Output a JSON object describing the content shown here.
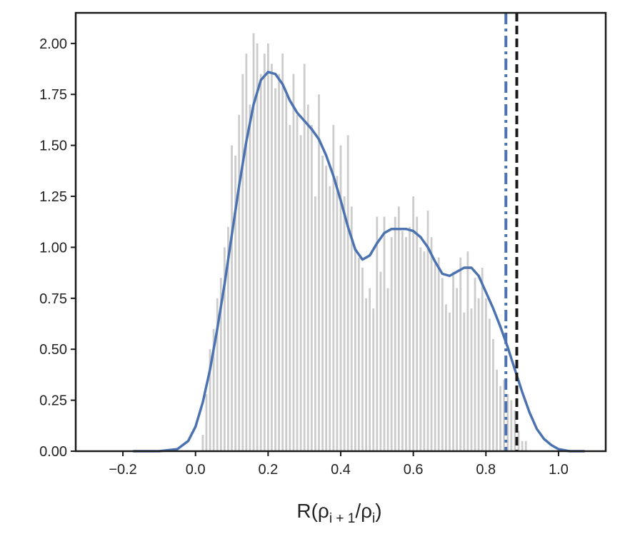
{
  "chart_data": {
    "type": "bar",
    "title": "",
    "xlabel": "R(ρ",
    "xlabel_sub1": "i + 1",
    "xlabel_mid": "/ρ",
    "xlabel_sub2": "i",
    "xlabel_end": ")",
    "ylabel": "",
    "xlim": [
      -0.33,
      1.13
    ],
    "ylim": [
      0.0,
      2.15
    ],
    "grid": false,
    "xticks": [
      -0.2,
      0.0,
      0.2,
      0.4,
      0.6,
      0.8,
      1.0
    ],
    "xtick_labels": [
      "−0.2",
      "0.0",
      "0.2",
      "0.4",
      "0.6",
      "0.8",
      "1.0"
    ],
    "yticks": [
      0.0,
      0.25,
      0.5,
      0.75,
      1.0,
      1.25,
      1.5,
      1.75,
      2.0
    ],
    "ytick_labels": [
      "0.00",
      "0.25",
      "0.50",
      "0.75",
      "1.00",
      "1.25",
      "1.50",
      "1.75",
      "2.00"
    ],
    "histogram": {
      "color": "#cccccc",
      "bin_width": 0.01,
      "bin_centers": [
        0.02,
        0.03,
        0.04,
        0.05,
        0.06,
        0.07,
        0.08,
        0.09,
        0.1,
        0.11,
        0.12,
        0.13,
        0.14,
        0.15,
        0.16,
        0.17,
        0.18,
        0.19,
        0.2,
        0.21,
        0.22,
        0.23,
        0.24,
        0.25,
        0.26,
        0.27,
        0.28,
        0.29,
        0.3,
        0.31,
        0.32,
        0.33,
        0.34,
        0.35,
        0.36,
        0.37,
        0.38,
        0.39,
        0.4,
        0.41,
        0.42,
        0.43,
        0.44,
        0.45,
        0.46,
        0.47,
        0.48,
        0.49,
        0.5,
        0.51,
        0.52,
        0.53,
        0.54,
        0.55,
        0.56,
        0.57,
        0.58,
        0.59,
        0.6,
        0.61,
        0.62,
        0.63,
        0.64,
        0.65,
        0.66,
        0.67,
        0.68,
        0.69,
        0.7,
        0.71,
        0.72,
        0.73,
        0.74,
        0.75,
        0.76,
        0.77,
        0.78,
        0.79,
        0.8,
        0.81,
        0.82,
        0.83,
        0.84,
        0.85,
        0.86,
        0.87,
        0.88,
        0.89,
        0.9,
        0.91
      ],
      "values": [
        0.08,
        0.28,
        0.5,
        0.6,
        0.75,
        0.85,
        1.0,
        1.1,
        1.5,
        1.45,
        1.65,
        1.85,
        1.95,
        1.7,
        2.05,
        2.0,
        1.85,
        1.95,
        2.0,
        1.9,
        1.78,
        1.85,
        1.95,
        1.75,
        1.6,
        1.85,
        1.65,
        1.55,
        1.9,
        1.7,
        1.6,
        1.25,
        1.75,
        1.45,
        1.4,
        1.3,
        1.6,
        1.35,
        1.5,
        1.25,
        1.55,
        1.2,
        1.0,
        0.95,
        0.9,
        0.75,
        0.8,
        0.7,
        1.15,
        0.88,
        1.15,
        0.8,
        1.05,
        1.15,
        1.2,
        1.08,
        1.05,
        1.1,
        1.25,
        1.15,
        1.0,
        0.98,
        1.18,
        1.05,
        0.92,
        0.95,
        0.85,
        0.72,
        0.68,
        0.88,
        0.8,
        0.95,
        0.68,
        0.98,
        0.7,
        0.85,
        0.75,
        0.9,
        0.75,
        0.65,
        0.55,
        0.4,
        0.32,
        0.35,
        0.28,
        0.25,
        0.2,
        0.1,
        0.05,
        0.05
      ]
    },
    "series": [
      {
        "type": "line",
        "color": "#4c72b0",
        "x": [
          -0.17,
          -0.1,
          -0.05,
          -0.02,
          0.0,
          0.02,
          0.04,
          0.06,
          0.08,
          0.1,
          0.12,
          0.14,
          0.16,
          0.18,
          0.2,
          0.22,
          0.24,
          0.26,
          0.28,
          0.3,
          0.32,
          0.34,
          0.36,
          0.38,
          0.4,
          0.42,
          0.44,
          0.46,
          0.48,
          0.5,
          0.52,
          0.54,
          0.56,
          0.58,
          0.6,
          0.62,
          0.64,
          0.66,
          0.68,
          0.7,
          0.72,
          0.74,
          0.76,
          0.78,
          0.8,
          0.82,
          0.84,
          0.86,
          0.88,
          0.9,
          0.92,
          0.94,
          0.96,
          0.98,
          1.0,
          1.03,
          1.07
        ],
        "y": [
          0.0,
          0.0,
          0.01,
          0.05,
          0.12,
          0.24,
          0.4,
          0.6,
          0.82,
          1.06,
          1.3,
          1.52,
          1.7,
          1.82,
          1.86,
          1.85,
          1.8,
          1.72,
          1.66,
          1.62,
          1.58,
          1.53,
          1.45,
          1.35,
          1.23,
          1.1,
          0.99,
          0.94,
          0.96,
          1.02,
          1.07,
          1.09,
          1.09,
          1.09,
          1.08,
          1.05,
          1.0,
          0.93,
          0.87,
          0.86,
          0.88,
          0.9,
          0.9,
          0.86,
          0.78,
          0.7,
          0.61,
          0.51,
          0.4,
          0.29,
          0.19,
          0.11,
          0.06,
          0.03,
          0.01,
          0.0,
          0.0
        ]
      }
    ],
    "vlines": [
      {
        "x": 0.855,
        "style": "dashdot",
        "color": "#4c72b0"
      },
      {
        "x": 0.885,
        "style": "dashed",
        "color": "#1a1a1a"
      }
    ]
  }
}
